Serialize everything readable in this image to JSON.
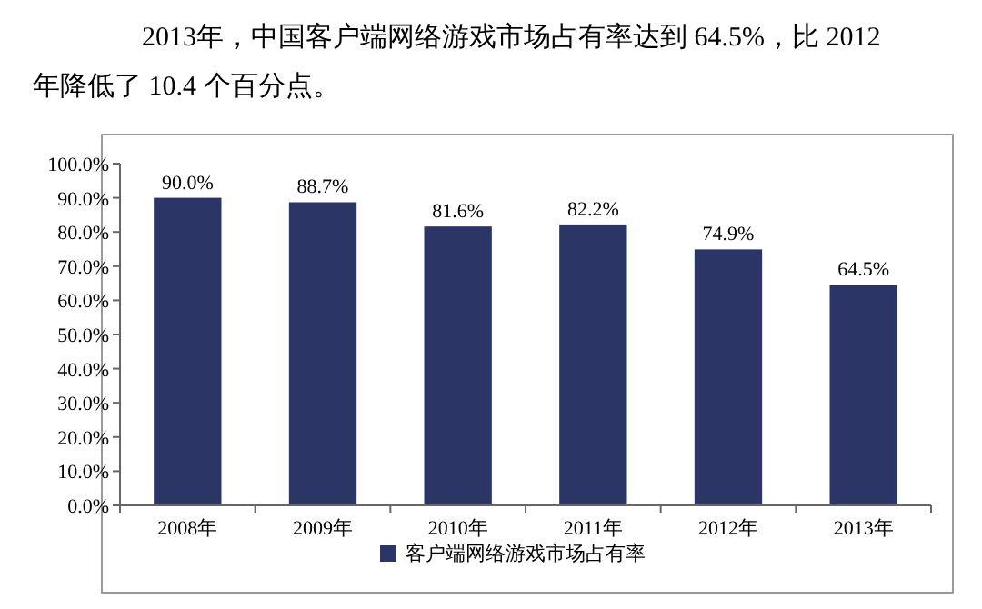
{
  "chart_data": {
    "type": "bar",
    "title": "2013年，中国客户端网络游戏市场占有率达到 64.5%，比 2012 年降低了 10.4 个百分点。",
    "categories": [
      "2008年",
      "2009年",
      "2010年",
      "2011年",
      "2012年",
      "2013年"
    ],
    "series": [
      {
        "name": "客户端网络游戏市场占有率",
        "color": "#2b3566",
        "values": [
          90.0,
          88.7,
          81.6,
          82.2,
          74.9,
          64.5
        ],
        "value_labels": [
          "90.0%",
          "88.7%",
          "81.6%",
          "82.2%",
          "74.9%",
          "64.5%"
        ]
      }
    ],
    "ylim": [
      0,
      100
    ],
    "yticks": [
      {
        "value": 0,
        "label": "0.0%"
      },
      {
        "value": 10,
        "label": "10.0%"
      },
      {
        "value": 20,
        "label": "20.0%"
      },
      {
        "value": 30,
        "label": "30.0%"
      },
      {
        "value": 40,
        "label": "40.0%"
      },
      {
        "value": 50,
        "label": "50.0%"
      },
      {
        "value": 60,
        "label": "60.0%"
      },
      {
        "value": 70,
        "label": "70.0%"
      },
      {
        "value": 80,
        "label": "80.0%"
      },
      {
        "value": 90,
        "label": "90.0%"
      },
      {
        "value": 100,
        "label": "100.0%"
      }
    ],
    "legend": "bottom"
  }
}
